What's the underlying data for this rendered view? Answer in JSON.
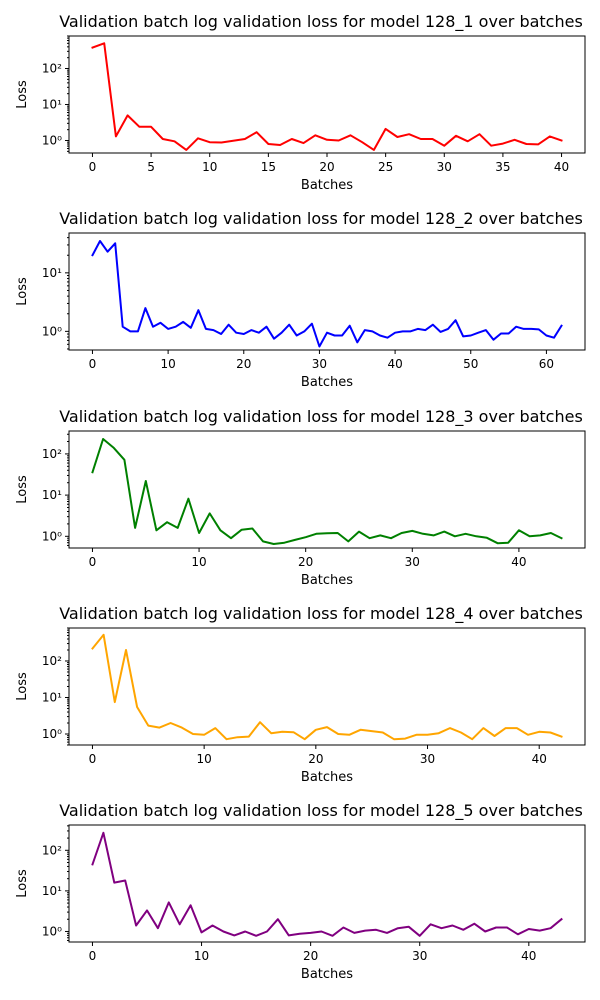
{
  "chart_data": [
    {
      "type": "line",
      "title": "Validation batch log validation loss for model 128_1 over batches",
      "xlabel": "Batches",
      "ylabel": "Loss",
      "yscale": "log",
      "color": "#ff0000",
      "xlim": [
        -2,
        42
      ],
      "ylim": [
        0.45,
        800
      ],
      "xticks": [
        0,
        5,
        10,
        15,
        20,
        25,
        30,
        35,
        40
      ],
      "yticks": [
        1,
        10,
        100
      ],
      "yticklabels": [
        "10⁰",
        "10¹",
        "10²"
      ],
      "x": [
        0,
        1,
        2,
        3,
        4,
        5,
        6,
        7,
        8,
        9,
        10,
        11,
        12,
        13,
        14,
        15,
        16,
        17,
        18,
        19,
        20,
        21,
        22,
        23,
        24,
        25,
        26,
        27,
        28,
        29,
        30,
        31,
        32,
        33,
        34,
        35,
        36,
        37,
        38,
        39,
        40
      ],
      "y": [
        380,
        500,
        1.3,
        5.0,
        2.4,
        2.4,
        1.1,
        0.95,
        0.55,
        1.15,
        0.9,
        0.88,
        0.98,
        1.1,
        1.7,
        0.8,
        0.75,
        1.1,
        0.85,
        1.4,
        1.05,
        1.0,
        1.4,
        0.9,
        0.55,
        2.1,
        1.25,
        1.5,
        1.1,
        1.1,
        0.72,
        1.35,
        0.95,
        1.5,
        0.72,
        0.82,
        1.05,
        0.8,
        0.78,
        1.3,
        1.0
      ]
    },
    {
      "type": "line",
      "title": "Validation batch log validation loss for model 128_2 over batches",
      "xlabel": "Batches",
      "ylabel": "Loss",
      "yscale": "log",
      "color": "#0000ff",
      "xlim": [
        -3.1,
        65.1
      ],
      "ylim": [
        0.48,
        48
      ],
      "xticks": [
        0,
        10,
        20,
        30,
        40,
        50,
        60
      ],
      "yticks": [
        1,
        10
      ],
      "yticklabels": [
        "10⁰",
        "10¹"
      ],
      "x": [
        0,
        1,
        2,
        3,
        4,
        5,
        6,
        7,
        8,
        9,
        10,
        11,
        12,
        13,
        14,
        15,
        16,
        17,
        18,
        19,
        20,
        21,
        22,
        23,
        24,
        25,
        26,
        27,
        28,
        29,
        30,
        31,
        32,
        33,
        34,
        35,
        36,
        37,
        38,
        39,
        40,
        41,
        42,
        43,
        44,
        45,
        46,
        47,
        48,
        49,
        50,
        51,
        52,
        53,
        54,
        55,
        56,
        57,
        58,
        59,
        60,
        61,
        62
      ],
      "y": [
        20,
        35,
        23,
        32,
        1.2,
        1.0,
        1.0,
        2.5,
        1.2,
        1.4,
        1.1,
        1.2,
        1.45,
        1.15,
        2.3,
        1.1,
        1.05,
        0.9,
        1.3,
        0.95,
        0.9,
        1.05,
        0.95,
        1.2,
        0.75,
        0.95,
        1.3,
        0.85,
        1.0,
        1.35,
        0.55,
        0.95,
        0.85,
        0.85,
        1.25,
        0.65,
        1.05,
        1.0,
        0.85,
        0.78,
        0.95,
        1.0,
        1.0,
        1.1,
        1.05,
        1.3,
        0.98,
        1.1,
        1.55,
        0.82,
        0.85,
        0.95,
        1.05,
        0.72,
        0.92,
        0.92,
        1.2,
        1.1,
        1.1,
        1.08,
        0.85,
        0.78,
        1.25
      ]
    },
    {
      "type": "line",
      "title": "Validation batch log validation loss for model 128_3 over batches",
      "xlabel": "Batches",
      "ylabel": "Loss",
      "yscale": "log",
      "color": "#008000",
      "xlim": [
        -2.2,
        46.2
      ],
      "ylim": [
        0.52,
        360
      ],
      "xticks": [
        0,
        10,
        20,
        30,
        40
      ],
      "yticks": [
        1,
        10,
        100
      ],
      "yticklabels": [
        "10⁰",
        "10¹",
        "10²"
      ],
      "x": [
        0,
        1,
        2,
        3,
        4,
        5,
        6,
        7,
        8,
        9,
        10,
        11,
        12,
        13,
        14,
        15,
        16,
        17,
        18,
        19,
        20,
        21,
        22,
        23,
        24,
        25,
        26,
        27,
        28,
        29,
        30,
        31,
        32,
        33,
        34,
        35,
        36,
        37,
        38,
        39,
        40,
        41,
        42,
        43,
        44
      ],
      "y": [
        36,
        230,
        140,
        72,
        1.6,
        22,
        1.4,
        2.2,
        1.6,
        8.2,
        1.2,
        3.6,
        1.4,
        0.9,
        1.45,
        1.55,
        0.75,
        0.65,
        0.7,
        0.82,
        0.95,
        1.15,
        1.18,
        1.2,
        0.75,
        1.3,
        0.9,
        1.05,
        0.9,
        1.2,
        1.35,
        1.15,
        1.05,
        1.3,
        1.0,
        1.15,
        1.0,
        0.92,
        0.68,
        0.7,
        1.4,
        1.0,
        1.05,
        1.2,
        0.9
      ]
    },
    {
      "type": "line",
      "title": "Validation batch log validation loss for model 128_4 over batches",
      "xlabel": "Batches",
      "ylabel": "Loss",
      "yscale": "log",
      "color": "#ffa500",
      "xlim": [
        -2.1,
        44.1
      ],
      "ylim": [
        0.5,
        800
      ],
      "xticks": [
        0,
        10,
        20,
        30,
        40
      ],
      "yticks": [
        1,
        10,
        100
      ],
      "yticklabels": [
        "10⁰",
        "10¹",
        "10²"
      ],
      "x": [
        0,
        1,
        2,
        3,
        4,
        5,
        6,
        7,
        8,
        9,
        10,
        11,
        12,
        13,
        14,
        15,
        16,
        17,
        18,
        19,
        20,
        21,
        22,
        23,
        24,
        25,
        26,
        27,
        28,
        29,
        30,
        31,
        32,
        33,
        34,
        35,
        36,
        37,
        38,
        39,
        40,
        41,
        42
      ],
      "y": [
        220,
        520,
        7.5,
        200,
        5.5,
        1.7,
        1.5,
        2.0,
        1.5,
        1.0,
        0.95,
        1.45,
        0.72,
        0.82,
        0.85,
        2.1,
        1.05,
        1.15,
        1.12,
        0.72,
        1.3,
        1.55,
        1.0,
        0.95,
        1.3,
        1.2,
        1.1,
        0.72,
        0.75,
        0.95,
        0.95,
        1.05,
        1.45,
        1.1,
        0.72,
        1.45,
        0.88,
        1.45,
        1.45,
        0.95,
        1.15,
        1.1,
        0.85
      ]
    },
    {
      "type": "line",
      "title": "Validation batch log validation loss for model 128_5 over batches",
      "xlabel": "Batches",
      "ylabel": "Loss",
      "yscale": "log",
      "color": "#800080",
      "xlim": [
        -2.15,
        45.15
      ],
      "ylim": [
        0.55,
        420
      ],
      "xticks": [
        0,
        10,
        20,
        30,
        40
      ],
      "yticks": [
        1,
        10,
        100
      ],
      "yticklabels": [
        "10⁰",
        "10¹",
        "10²"
      ],
      "x": [
        0,
        1,
        2,
        3,
        4,
        5,
        6,
        7,
        8,
        9,
        10,
        11,
        12,
        13,
        14,
        15,
        16,
        17,
        18,
        19,
        20,
        21,
        22,
        23,
        24,
        25,
        26,
        27,
        28,
        29,
        30,
        31,
        32,
        33,
        34,
        35,
        36,
        37,
        38,
        39,
        40,
        41,
        42,
        43
      ],
      "y": [
        45,
        270,
        16,
        18,
        1.4,
        3.3,
        1.2,
        5.2,
        1.5,
        4.4,
        0.95,
        1.4,
        1.0,
        0.8,
        1.0,
        0.78,
        1.0,
        2.0,
        0.8,
        0.88,
        0.92,
        1.0,
        0.78,
        1.25,
        0.92,
        1.05,
        1.1,
        0.92,
        1.2,
        1.3,
        0.78,
        1.5,
        1.2,
        1.4,
        1.1,
        1.55,
        1.0,
        1.25,
        1.25,
        0.85,
        1.15,
        1.05,
        1.2,
        2.0
      ]
    }
  ]
}
